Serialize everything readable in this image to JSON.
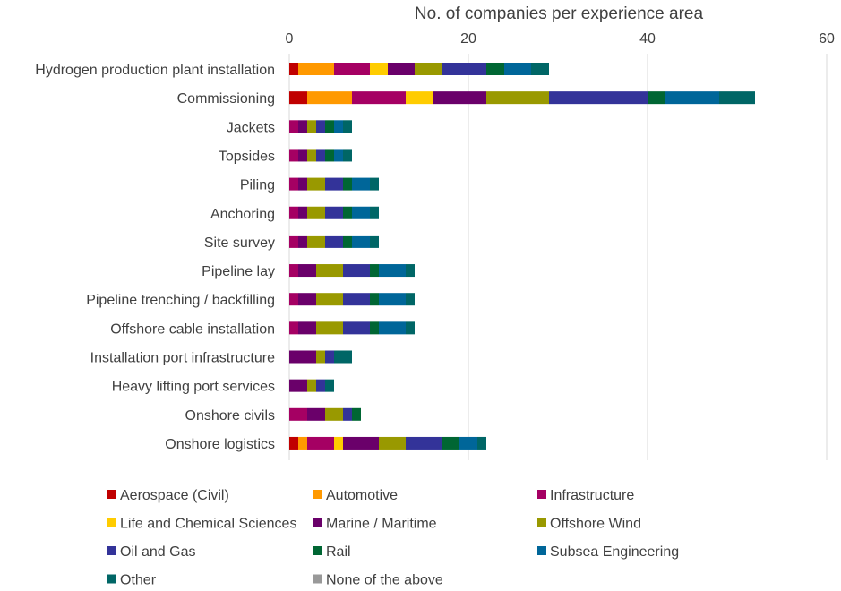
{
  "chart_data": {
    "type": "bar",
    "stacked": true,
    "orientation": "horizontal",
    "title": "No. of companies per experience area",
    "xlabel": "",
    "ylabel": "",
    "xlim": [
      0,
      60
    ],
    "xticks": [
      "0",
      "20",
      "40",
      "60"
    ],
    "x_axis_position": "top",
    "grid": true,
    "legend_position": "bottom",
    "categories": [
      "Hydrogen production plant installation",
      "Commissioning",
      "Jackets",
      "Topsides",
      "Piling",
      "Anchoring",
      "Site survey",
      "Pipeline lay",
      "Pipeline trenching / backfilling",
      "Offshore cable installation",
      "Installation port infrastructure",
      "Heavy lifting port services",
      "Onshore civils",
      "Onshore logistics"
    ],
    "series": [
      {
        "name": "Aerospace (Civil)",
        "color": "#c00000",
        "values": [
          1,
          2,
          0,
          0,
          0,
          0,
          0,
          0,
          0,
          0,
          0,
          0,
          0,
          1
        ]
      },
      {
        "name": "Automotive",
        "color": "#ff9900",
        "values": [
          4,
          5,
          0,
          0,
          0,
          0,
          0,
          0,
          0,
          0,
          0,
          0,
          0,
          1
        ]
      },
      {
        "name": "Infrastructure",
        "color": "#a50063",
        "values": [
          4,
          6,
          1,
          1,
          1,
          1,
          1,
          1,
          1,
          1,
          0,
          0,
          2,
          3
        ]
      },
      {
        "name": "Life and Chemical Sciences",
        "color": "#ffcc00",
        "values": [
          2,
          3,
          0,
          0,
          0,
          0,
          0,
          0,
          0,
          0,
          0,
          0,
          0,
          1
        ]
      },
      {
        "name": "Marine / Maritime",
        "color": "#6a006a",
        "values": [
          3,
          6,
          1,
          1,
          1,
          1,
          1,
          2,
          2,
          2,
          3,
          2,
          2,
          4
        ]
      },
      {
        "name": "Offshore Wind",
        "color": "#999900",
        "values": [
          3,
          7,
          1,
          1,
          2,
          2,
          2,
          3,
          3,
          3,
          1,
          1,
          2,
          3
        ]
      },
      {
        "name": "Oil and Gas",
        "color": "#333399",
        "values": [
          5,
          11,
          1,
          1,
          2,
          2,
          2,
          3,
          3,
          3,
          1,
          1,
          1,
          4
        ]
      },
      {
        "name": "Rail",
        "color": "#006633",
        "values": [
          2,
          2,
          1,
          1,
          1,
          1,
          1,
          1,
          1,
          1,
          0,
          0,
          1,
          2
        ]
      },
      {
        "name": "Subsea Engineering",
        "color": "#006699",
        "values": [
          3,
          6,
          1,
          1,
          2,
          2,
          2,
          3,
          3,
          3,
          0,
          0,
          0,
          2
        ]
      },
      {
        "name": "Other",
        "color": "#006666",
        "values": [
          2,
          4,
          1,
          1,
          1,
          1,
          1,
          1,
          1,
          1,
          2,
          1,
          0,
          1
        ]
      },
      {
        "name": "None of the above",
        "color": "#999999",
        "values": [
          0,
          0,
          0,
          0,
          0,
          0,
          0,
          0,
          0,
          0,
          0,
          0,
          0,
          0
        ]
      }
    ]
  }
}
